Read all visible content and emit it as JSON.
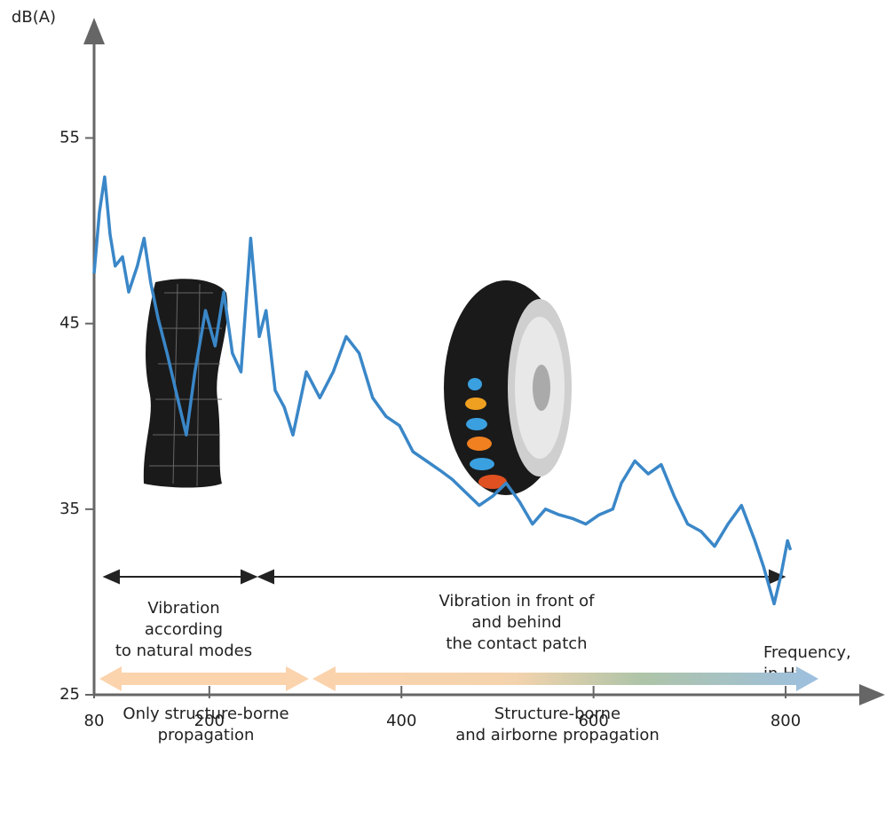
{
  "chart_data": {
    "type": "line",
    "y_label": "dB(A)",
    "x_label": [
      "Frequency,",
      "in Hz"
    ],
    "x": [
      80,
      85.5,
      91,
      96.6,
      102,
      109.6,
      116,
      125,
      132,
      139,
      146.5,
      156,
      165,
      176,
      185,
      196,
      206,
      215,
      224,
      233,
      243,
      252,
      259,
      268.5,
      278,
      287,
      301,
      315,
      329,
      342.5,
      356,
      370,
      384,
      398,
      412,
      426,
      440,
      453,
      467,
      481,
      495,
      509,
      523,
      536.5,
      550,
      564,
      578,
      592,
      606,
      620,
      629,
      643,
      657,
      670.5,
      684,
      698,
      712,
      726,
      740,
      754,
      768,
      777,
      788,
      795,
      802,
      805
    ],
    "series": [
      {
        "color": "#3a87c8",
        "values": [
          47.7,
          51.0,
          52.9,
          49.8,
          48.1,
          48.6,
          46.7,
          48.1,
          49.6,
          47.2,
          45.3,
          43.4,
          41.4,
          39.0,
          42.4,
          45.7,
          43.8,
          46.7,
          43.4,
          42.4,
          49.6,
          44.3,
          45.7,
          41.4,
          40.5,
          39.0,
          42.4,
          41.0,
          42.4,
          44.3,
          43.4,
          41.0,
          40.0,
          39.5,
          38.1,
          37.6,
          37.1,
          36.6,
          35.9,
          35.2,
          35.7,
          36.4,
          35.4,
          34.2,
          35.0,
          34.7,
          34.5,
          34.2,
          34.7,
          35.0,
          36.4,
          37.6,
          36.9,
          37.4,
          35.7,
          34.2,
          33.8,
          33.0,
          34.2,
          35.2,
          33.3,
          31.9,
          29.9,
          31.4,
          33.3,
          32.8
        ]
      }
    ],
    "xlim": [
      80,
      897
    ],
    "ylim": [
      25,
      61
    ],
    "xticks": [
      80,
      200,
      400,
      600,
      800
    ],
    "yticks": [
      25,
      35,
      45,
      55
    ]
  },
  "annotations": {
    "natural_modes": [
      "Vibration",
      "according",
      "to natural modes"
    ],
    "contact_patch": [
      "Vibration in front of",
      "and behind",
      "the contact patch"
    ]
  },
  "propagation": {
    "structure": [
      "Only structure-borne",
      "propagation"
    ],
    "both": [
      "Structure-borne",
      "and airborne propagation"
    ]
  }
}
